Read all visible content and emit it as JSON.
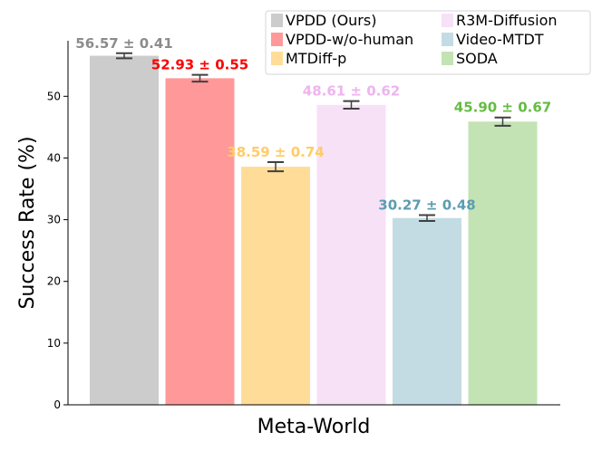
{
  "chart_data": {
    "type": "bar",
    "xlabel": "Meta-World",
    "ylabel": "Success Rate (%)",
    "ylim": [
      0,
      59
    ],
    "yticks": [
      0,
      10,
      20,
      30,
      40,
      50
    ],
    "grid": false,
    "legend_position": "top-right",
    "series": [
      {
        "name": "VPDD (Ours)",
        "value": 56.57,
        "error": 0.41,
        "label": "56.57 ± 0.41",
        "color": "#cccccc",
        "label_color": "#8c8c8c"
      },
      {
        "name": "VPDD-w/o-human",
        "value": 52.93,
        "error": 0.55,
        "label": "52.93 ± 0.55",
        "color": "#ff9999",
        "label_color": "#ff0000"
      },
      {
        "name": "MTDiff-p",
        "value": 38.59,
        "error": 0.74,
        "label": "38.59 ± 0.74",
        "color": "#ffdd99",
        "label_color": "#ffcc66"
      },
      {
        "name": "R3M-Diffusion",
        "value": 48.61,
        "error": 0.62,
        "label": "48.61 ± 0.62",
        "color": "#f7e1f7",
        "label_color": "#eeb4ee"
      },
      {
        "name": "Video-MTDT",
        "value": 30.27,
        "error": 0.48,
        "label": "30.27 ± 0.48",
        "color": "#c3dce4",
        "label_color": "#5b9db0"
      },
      {
        "name": "SODA",
        "value": 45.9,
        "error": 0.67,
        "label": "45.90 ± 0.67",
        "color": "#c3e3b5",
        "label_color": "#66bb44"
      }
    ]
  }
}
